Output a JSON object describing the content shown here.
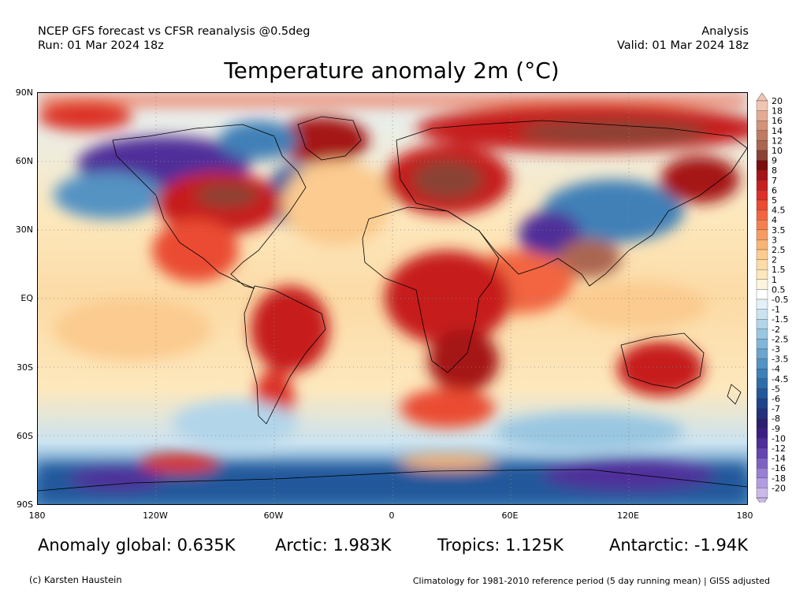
{
  "header": {
    "left_line1": "NCEP GFS forecast vs CFSR reanalysis @0.5deg",
    "left_line2": "Run: 01 Mar 2024 18z",
    "right_line1": "Analysis",
    "right_line2": "Valid: 01 Mar 2024 18z"
  },
  "title": "Temperature anomaly 2m (°C)",
  "map": {
    "lat_labels": [
      "90N",
      "60N",
      "30N",
      "EQ",
      "30S",
      "60S",
      "90S"
    ],
    "lon_labels": [
      "180",
      "120W",
      "60W",
      "0",
      "60E",
      "120E",
      "180"
    ]
  },
  "legend": {
    "levels": [
      "20",
      "18",
      "16",
      "14",
      "12",
      "10",
      "9",
      "8",
      "7",
      "6",
      "5",
      "4.5",
      "4",
      "3.5",
      "3",
      "2.5",
      "2",
      "1.5",
      "1",
      "0.5",
      "-0.5",
      "-1",
      "-1.5",
      "-2",
      "-2.5",
      "-3",
      "-3.5",
      "-4",
      "-4.5",
      "-5",
      "-6",
      "-7",
      "-8",
      "-9",
      "-10",
      "-12",
      "-14",
      "-16",
      "-18",
      "-20"
    ],
    "colors": [
      "#f1c5b2",
      "#e3ab94",
      "#d29379",
      "#bf7b63",
      "#ab6651",
      "#8a4236",
      "#7a0d0d",
      "#a51419",
      "#c61f1f",
      "#dc3128",
      "#ea4b32",
      "#f26540",
      "#f5804f",
      "#f89b61",
      "#f9b576",
      "#fbcb8f",
      "#fcdba6",
      "#fde8bd",
      "#fef5dc",
      "#ffffff",
      "#e3f0f8",
      "#cbe3f1",
      "#b2d5ea",
      "#99c6e1",
      "#81b6d8",
      "#6aa5ce",
      "#5493c3",
      "#3f80b7",
      "#2e6daa",
      "#23599b",
      "#1f448a",
      "#23307b",
      "#2b1f71",
      "#3c1f85",
      "#4f2d9a",
      "#6645b0",
      "#7e62c3",
      "#9880d2",
      "#b19ddf",
      "#cab9ea"
    ]
  },
  "stats": {
    "global": "Anomaly global: 0.635K",
    "arctic": "Arctic: 1.983K",
    "tropics": "Tropics: 1.125K",
    "antarctic": "Antarctic: -1.94K"
  },
  "footer": {
    "credit": "(c) Karsten Haustein",
    "climatology": "Climatology for 1981-2010 reference period (5 day running mean) | GISS adjusted"
  }
}
